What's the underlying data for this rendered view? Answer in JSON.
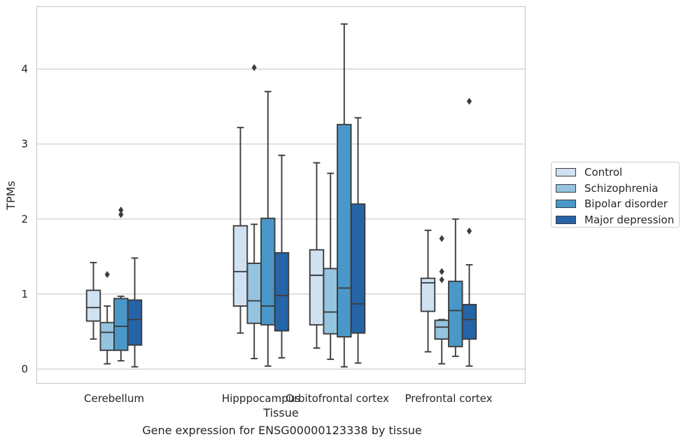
{
  "chart_data": {
    "type": "box",
    "title": "",
    "caption": "Gene expression for ENSG00000123338 by tissue",
    "xlabel": "Tissue",
    "ylabel": "TPMs",
    "ylim": [
      -0.2,
      4.85
    ],
    "yticks": [
      0,
      1,
      2,
      3,
      4
    ],
    "grid": "horizontal",
    "legend_position": "right",
    "categories": [
      "Cerebellum",
      "Hipppocampus",
      "Orbitofrontal cortex",
      "Prefrontal cortex"
    ],
    "series": [
      {
        "name": "Control",
        "color": "#d0e1f2",
        "boxes": [
          {
            "whislo": 0.4,
            "q1": 0.64,
            "med": 0.82,
            "q3": 1.05,
            "whishi": 1.42,
            "fliers": []
          },
          {
            "whislo": 0.48,
            "q1": 0.84,
            "med": 1.3,
            "q3": 1.91,
            "whishi": 3.22,
            "fliers": []
          },
          {
            "whislo": 0.28,
            "q1": 0.59,
            "med": 1.25,
            "q3": 1.59,
            "whishi": 2.75,
            "fliers": []
          },
          {
            "whislo": 0.23,
            "q1": 0.77,
            "med": 1.15,
            "q3": 1.21,
            "whishi": 1.85,
            "fliers": []
          }
        ]
      },
      {
        "name": "Schizophrenia",
        "color": "#94c4df",
        "boxes": [
          {
            "whislo": 0.07,
            "q1": 0.25,
            "med": 0.49,
            "q3": 0.62,
            "whishi": 0.84,
            "fliers": [
              1.26
            ]
          },
          {
            "whislo": 0.14,
            "q1": 0.61,
            "med": 0.91,
            "q3": 1.41,
            "whishi": 1.93,
            "fliers": [
              4.02
            ]
          },
          {
            "whislo": 0.13,
            "q1": 0.47,
            "med": 0.76,
            "q3": 1.34,
            "whishi": 2.61,
            "fliers": []
          },
          {
            "whislo": 0.07,
            "q1": 0.4,
            "med": 0.56,
            "q3": 0.65,
            "whishi": 0.66,
            "fliers": [
              1.19,
              1.3,
              1.74
            ]
          }
        ]
      },
      {
        "name": "Bipolar disorder",
        "color": "#4a98c9",
        "boxes": [
          {
            "whislo": 0.11,
            "q1": 0.25,
            "med": 0.57,
            "q3": 0.94,
            "whishi": 0.97,
            "fliers": [
              2.06,
              2.12
            ]
          },
          {
            "whislo": 0.04,
            "q1": 0.59,
            "med": 0.84,
            "q3": 2.01,
            "whishi": 3.7,
            "fliers": []
          },
          {
            "whislo": 0.03,
            "q1": 0.43,
            "med": 1.08,
            "q3": 3.26,
            "whishi": 4.6,
            "fliers": []
          },
          {
            "whislo": 0.17,
            "q1": 0.3,
            "med": 0.78,
            "q3": 1.17,
            "whishi": 2.0,
            "fliers": []
          }
        ]
      },
      {
        "name": "Major depression",
        "color": "#2664a8",
        "boxes": [
          {
            "whislo": 0.03,
            "q1": 0.32,
            "med": 0.66,
            "q3": 0.92,
            "whishi": 1.48,
            "fliers": []
          },
          {
            "whislo": 0.15,
            "q1": 0.51,
            "med": 0.98,
            "q3": 1.55,
            "whishi": 2.85,
            "fliers": []
          },
          {
            "whislo": 0.08,
            "q1": 0.48,
            "med": 0.87,
            "q3": 2.2,
            "whishi": 3.35,
            "fliers": []
          },
          {
            "whislo": 0.04,
            "q1": 0.4,
            "med": 0.66,
            "q3": 0.86,
            "whishi": 1.39,
            "fliers": [
              1.84,
              3.57
            ]
          }
        ]
      }
    ]
  }
}
